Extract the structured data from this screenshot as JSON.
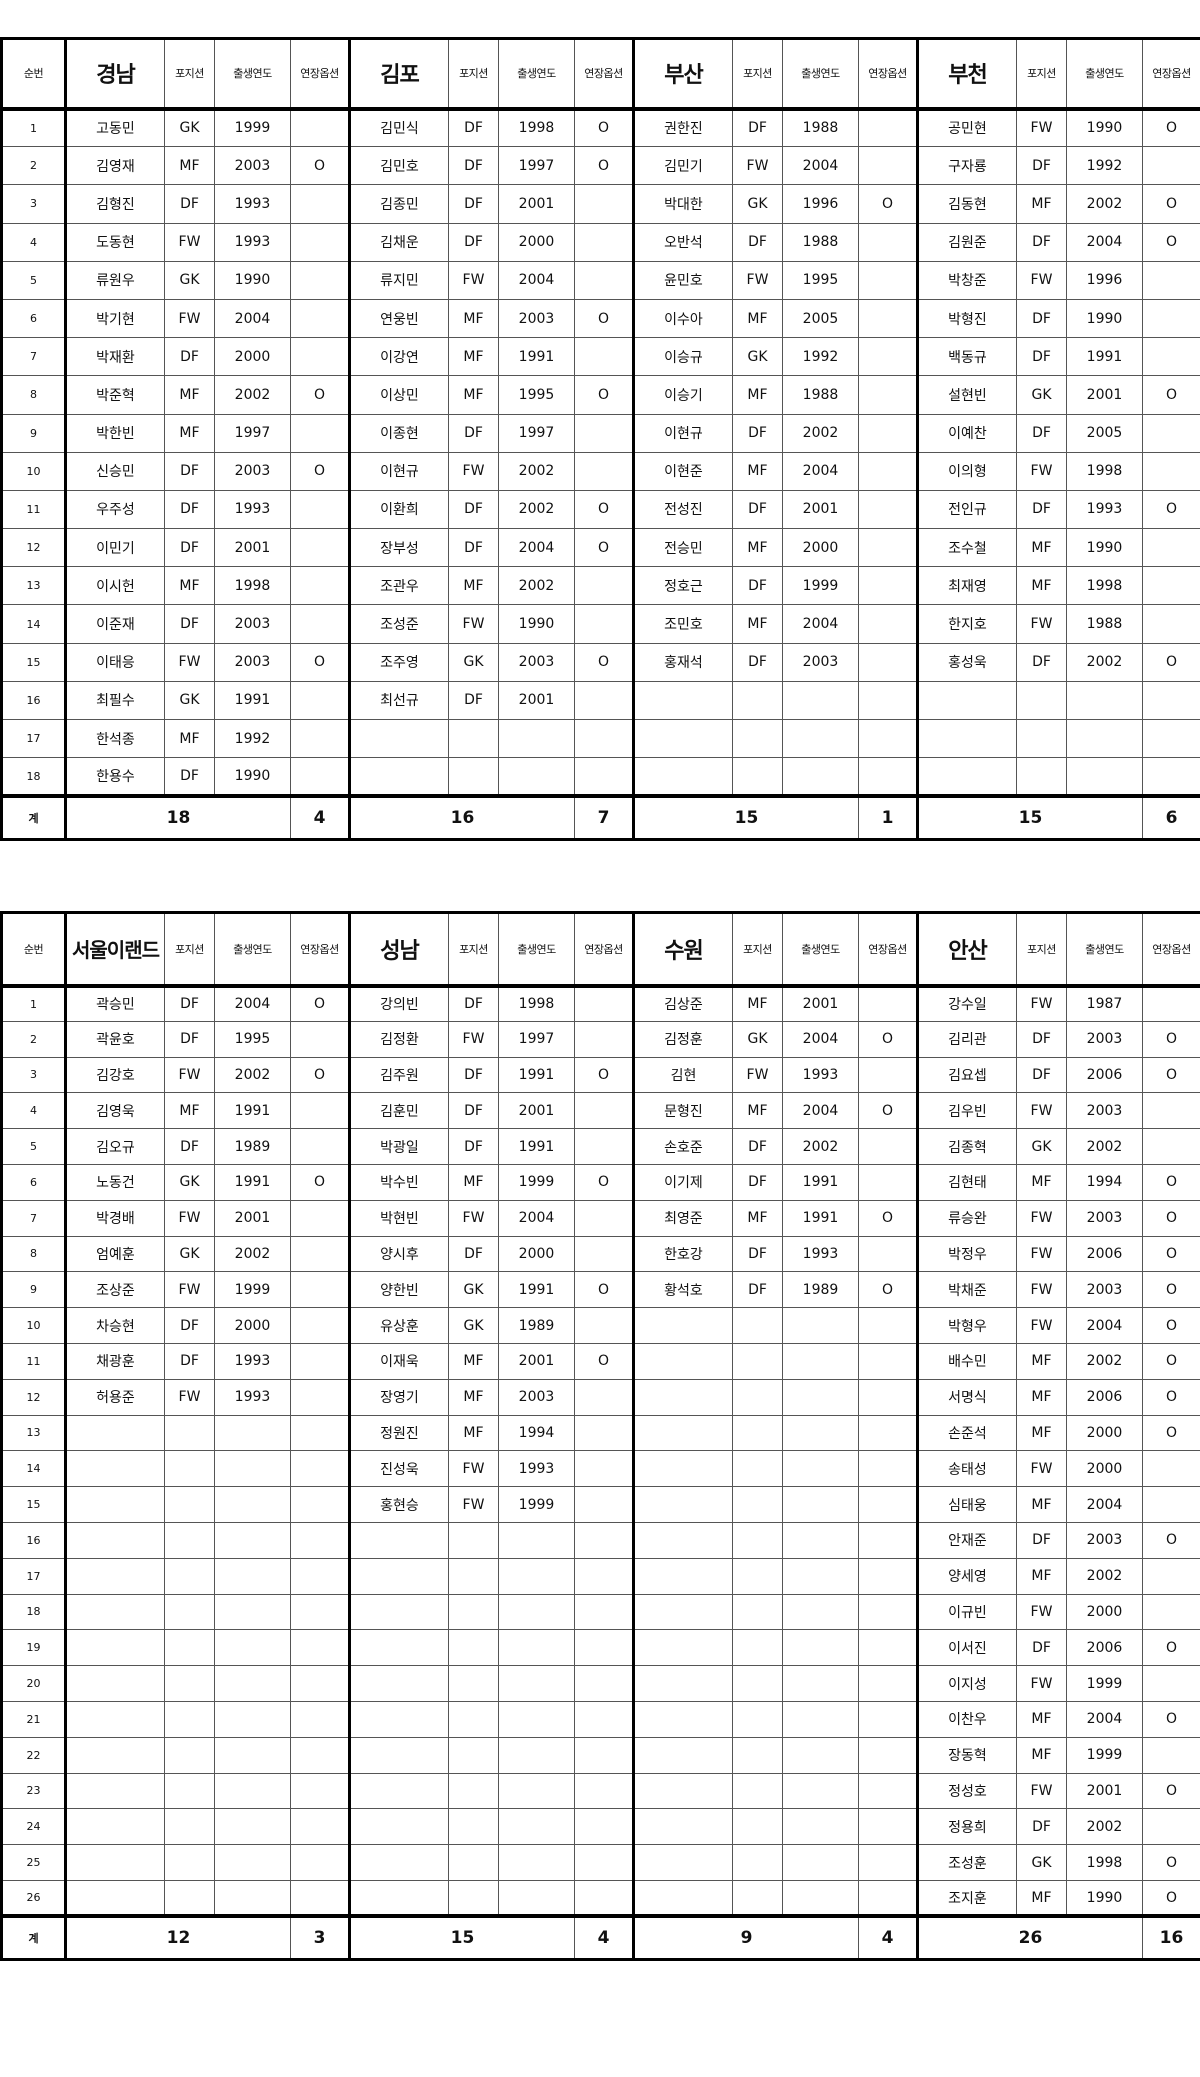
{
  "headers": {
    "no": "순번",
    "position": "포지션",
    "birth_year": "출생연도",
    "extension_option": "연장옵션",
    "total": "계"
  },
  "tables": [
    {
      "row_count": 18,
      "teams": [
        {
          "name": "경남",
          "total": "18",
          "option_total": "4",
          "players": [
            [
              "고동민",
              "GK",
              "1999",
              ""
            ],
            [
              "김영재",
              "MF",
              "2003",
              "O"
            ],
            [
              "김형진",
              "DF",
              "1993",
              ""
            ],
            [
              "도동현",
              "FW",
              "1993",
              ""
            ],
            [
              "류원우",
              "GK",
              "1990",
              ""
            ],
            [
              "박기현",
              "FW",
              "2004",
              ""
            ],
            [
              "박재환",
              "DF",
              "2000",
              ""
            ],
            [
              "박준혁",
              "MF",
              "2002",
              "O"
            ],
            [
              "박한빈",
              "MF",
              "1997",
              ""
            ],
            [
              "신승민",
              "DF",
              "2003",
              "O"
            ],
            [
              "우주성",
              "DF",
              "1993",
              ""
            ],
            [
              "이민기",
              "DF",
              "2001",
              ""
            ],
            [
              "이시헌",
              "MF",
              "1998",
              ""
            ],
            [
              "이준재",
              "DF",
              "2003",
              ""
            ],
            [
              "이태응",
              "FW",
              "2003",
              "O"
            ],
            [
              "최필수",
              "GK",
              "1991",
              ""
            ],
            [
              "한석종",
              "MF",
              "1992",
              ""
            ],
            [
              "한용수",
              "DF",
              "1990",
              ""
            ]
          ]
        },
        {
          "name": "김포",
          "total": "16",
          "option_total": "7",
          "players": [
            [
              "김민식",
              "DF",
              "1998",
              "O"
            ],
            [
              "김민호",
              "DF",
              "1997",
              "O"
            ],
            [
              "김종민",
              "DF",
              "2001",
              ""
            ],
            [
              "김채운",
              "DF",
              "2000",
              ""
            ],
            [
              "류지민",
              "FW",
              "2004",
              ""
            ],
            [
              "연웅빈",
              "MF",
              "2003",
              "O"
            ],
            [
              "이강연",
              "MF",
              "1991",
              ""
            ],
            [
              "이상민",
              "MF",
              "1995",
              "O"
            ],
            [
              "이종현",
              "DF",
              "1997",
              ""
            ],
            [
              "이현규",
              "FW",
              "2002",
              ""
            ],
            [
              "이환희",
              "DF",
              "2002",
              "O"
            ],
            [
              "장부성",
              "DF",
              "2004",
              "O"
            ],
            [
              "조관우",
              "MF",
              "2002",
              ""
            ],
            [
              "조성준",
              "FW",
              "1990",
              ""
            ],
            [
              "조주영",
              "GK",
              "2003",
              "O"
            ],
            [
              "최선규",
              "DF",
              "2001",
              ""
            ]
          ]
        },
        {
          "name": "부산",
          "total": "15",
          "option_total": "1",
          "players": [
            [
              "권한진",
              "DF",
              "1988",
              ""
            ],
            [
              "김민기",
              "FW",
              "2004",
              ""
            ],
            [
              "박대한",
              "GK",
              "1996",
              "O"
            ],
            [
              "오반석",
              "DF",
              "1988",
              ""
            ],
            [
              "윤민호",
              "FW",
              "1995",
              ""
            ],
            [
              "이수아",
              "MF",
              "2005",
              ""
            ],
            [
              "이승규",
              "GK",
              "1992",
              ""
            ],
            [
              "이승기",
              "MF",
              "1988",
              ""
            ],
            [
              "이현규",
              "DF",
              "2002",
              ""
            ],
            [
              "이현준",
              "MF",
              "2004",
              ""
            ],
            [
              "전성진",
              "DF",
              "2001",
              ""
            ],
            [
              "전승민",
              "MF",
              "2000",
              ""
            ],
            [
              "정호근",
              "DF",
              "1999",
              ""
            ],
            [
              "조민호",
              "MF",
              "2004",
              ""
            ],
            [
              "홍재석",
              "DF",
              "2003",
              ""
            ]
          ]
        },
        {
          "name": "부천",
          "total": "15",
          "option_total": "6",
          "players": [
            [
              "공민현",
              "FW",
              "1990",
              "O"
            ],
            [
              "구자룡",
              "DF",
              "1992",
              ""
            ],
            [
              "김동현",
              "MF",
              "2002",
              "O"
            ],
            [
              "김원준",
              "DF",
              "2004",
              "O"
            ],
            [
              "박창준",
              "FW",
              "1996",
              ""
            ],
            [
              "박형진",
              "DF",
              "1990",
              ""
            ],
            [
              "백동규",
              "DF",
              "1991",
              ""
            ],
            [
              "설현빈",
              "GK",
              "2001",
              "O"
            ],
            [
              "이예찬",
              "DF",
              "2005",
              ""
            ],
            [
              "이의형",
              "FW",
              "1998",
              ""
            ],
            [
              "전인규",
              "DF",
              "1993",
              "O"
            ],
            [
              "조수철",
              "MF",
              "1990",
              ""
            ],
            [
              "최재영",
              "MF",
              "1998",
              ""
            ],
            [
              "한지호",
              "FW",
              "1988",
              ""
            ],
            [
              "홍성욱",
              "DF",
              "2002",
              "O"
            ]
          ]
        }
      ]
    },
    {
      "row_count": 26,
      "teams": [
        {
          "name": "서울이랜드",
          "total": "12",
          "option_total": "3",
          "players": [
            [
              "곽승민",
              "DF",
              "2004",
              "O"
            ],
            [
              "곽윤호",
              "DF",
              "1995",
              ""
            ],
            [
              "김강호",
              "FW",
              "2002",
              "O"
            ],
            [
              "김영욱",
              "MF",
              "1991",
              ""
            ],
            [
              "김오규",
              "DF",
              "1989",
              ""
            ],
            [
              "노동건",
              "GK",
              "1991",
              "O"
            ],
            [
              "박경배",
              "FW",
              "2001",
              ""
            ],
            [
              "엄예훈",
              "GK",
              "2002",
              ""
            ],
            [
              "조상준",
              "FW",
              "1999",
              ""
            ],
            [
              "차승현",
              "DF",
              "2000",
              ""
            ],
            [
              "채광훈",
              "DF",
              "1993",
              ""
            ],
            [
              "허용준",
              "FW",
              "1993",
              ""
            ]
          ]
        },
        {
          "name": "성남",
          "total": "15",
          "option_total": "4",
          "players": [
            [
              "강의빈",
              "DF",
              "1998",
              ""
            ],
            [
              "김정환",
              "FW",
              "1997",
              ""
            ],
            [
              "김주원",
              "DF",
              "1991",
              "O"
            ],
            [
              "김훈민",
              "DF",
              "2001",
              ""
            ],
            [
              "박광일",
              "DF",
              "1991",
              ""
            ],
            [
              "박수빈",
              "MF",
              "1999",
              "O"
            ],
            [
              "박현빈",
              "FW",
              "2004",
              ""
            ],
            [
              "양시후",
              "DF",
              "2000",
              ""
            ],
            [
              "양한빈",
              "GK",
              "1991",
              "O"
            ],
            [
              "유상훈",
              "GK",
              "1989",
              ""
            ],
            [
              "이재욱",
              "MF",
              "2001",
              "O"
            ],
            [
              "장영기",
              "MF",
              "2003",
              ""
            ],
            [
              "정원진",
              "MF",
              "1994",
              ""
            ],
            [
              "진성욱",
              "FW",
              "1993",
              ""
            ],
            [
              "홍현승",
              "FW",
              "1999",
              ""
            ]
          ]
        },
        {
          "name": "수원",
          "total": "9",
          "option_total": "4",
          "players": [
            [
              "김상준",
              "MF",
              "2001",
              ""
            ],
            [
              "김정훈",
              "GK",
              "2004",
              "O"
            ],
            [
              "김현",
              "FW",
              "1993",
              ""
            ],
            [
              "문형진",
              "MF",
              "2004",
              "O"
            ],
            [
              "손호준",
              "DF",
              "2002",
              ""
            ],
            [
              "이기제",
              "DF",
              "1991",
              ""
            ],
            [
              "최영준",
              "MF",
              "1991",
              "O"
            ],
            [
              "한호강",
              "DF",
              "1993",
              ""
            ],
            [
              "황석호",
              "DF",
              "1989",
              "O"
            ]
          ]
        },
        {
          "name": "안산",
          "total": "26",
          "option_total": "16",
          "players": [
            [
              "강수일",
              "FW",
              "1987",
              ""
            ],
            [
              "김리관",
              "DF",
              "2003",
              "O"
            ],
            [
              "김요셉",
              "DF",
              "2006",
              "O"
            ],
            [
              "김우빈",
              "FW",
              "2003",
              ""
            ],
            [
              "김종혁",
              "GK",
              "2002",
              ""
            ],
            [
              "김현태",
              "MF",
              "1994",
              "O"
            ],
            [
              "류승완",
              "FW",
              "2003",
              "O"
            ],
            [
              "박정우",
              "FW",
              "2006",
              "O"
            ],
            [
              "박채준",
              "FW",
              "2003",
              "O"
            ],
            [
              "박형우",
              "FW",
              "2004",
              "O"
            ],
            [
              "배수민",
              "MF",
              "2002",
              "O"
            ],
            [
              "서명식",
              "MF",
              "2006",
              "O"
            ],
            [
              "손준석",
              "MF",
              "2000",
              "O"
            ],
            [
              "송태성",
              "FW",
              "2000",
              ""
            ],
            [
              "심태웅",
              "MF",
              "2004",
              ""
            ],
            [
              "안재준",
              "DF",
              "2003",
              "O"
            ],
            [
              "양세영",
              "MF",
              "2002",
              ""
            ],
            [
              "이규빈",
              "FW",
              "2000",
              ""
            ],
            [
              "이서진",
              "DF",
              "2006",
              "O"
            ],
            [
              "이지성",
              "FW",
              "1999",
              ""
            ],
            [
              "이찬우",
              "MF",
              "2004",
              "O"
            ],
            [
              "장동혁",
              "MF",
              "1999",
              ""
            ],
            [
              "정성호",
              "FW",
              "2001",
              "O"
            ],
            [
              "정용희",
              "DF",
              "2002",
              ""
            ],
            [
              "조성훈",
              "GK",
              "1998",
              "O"
            ],
            [
              "조지훈",
              "MF",
              "1990",
              "O"
            ]
          ]
        }
      ]
    }
  ]
}
